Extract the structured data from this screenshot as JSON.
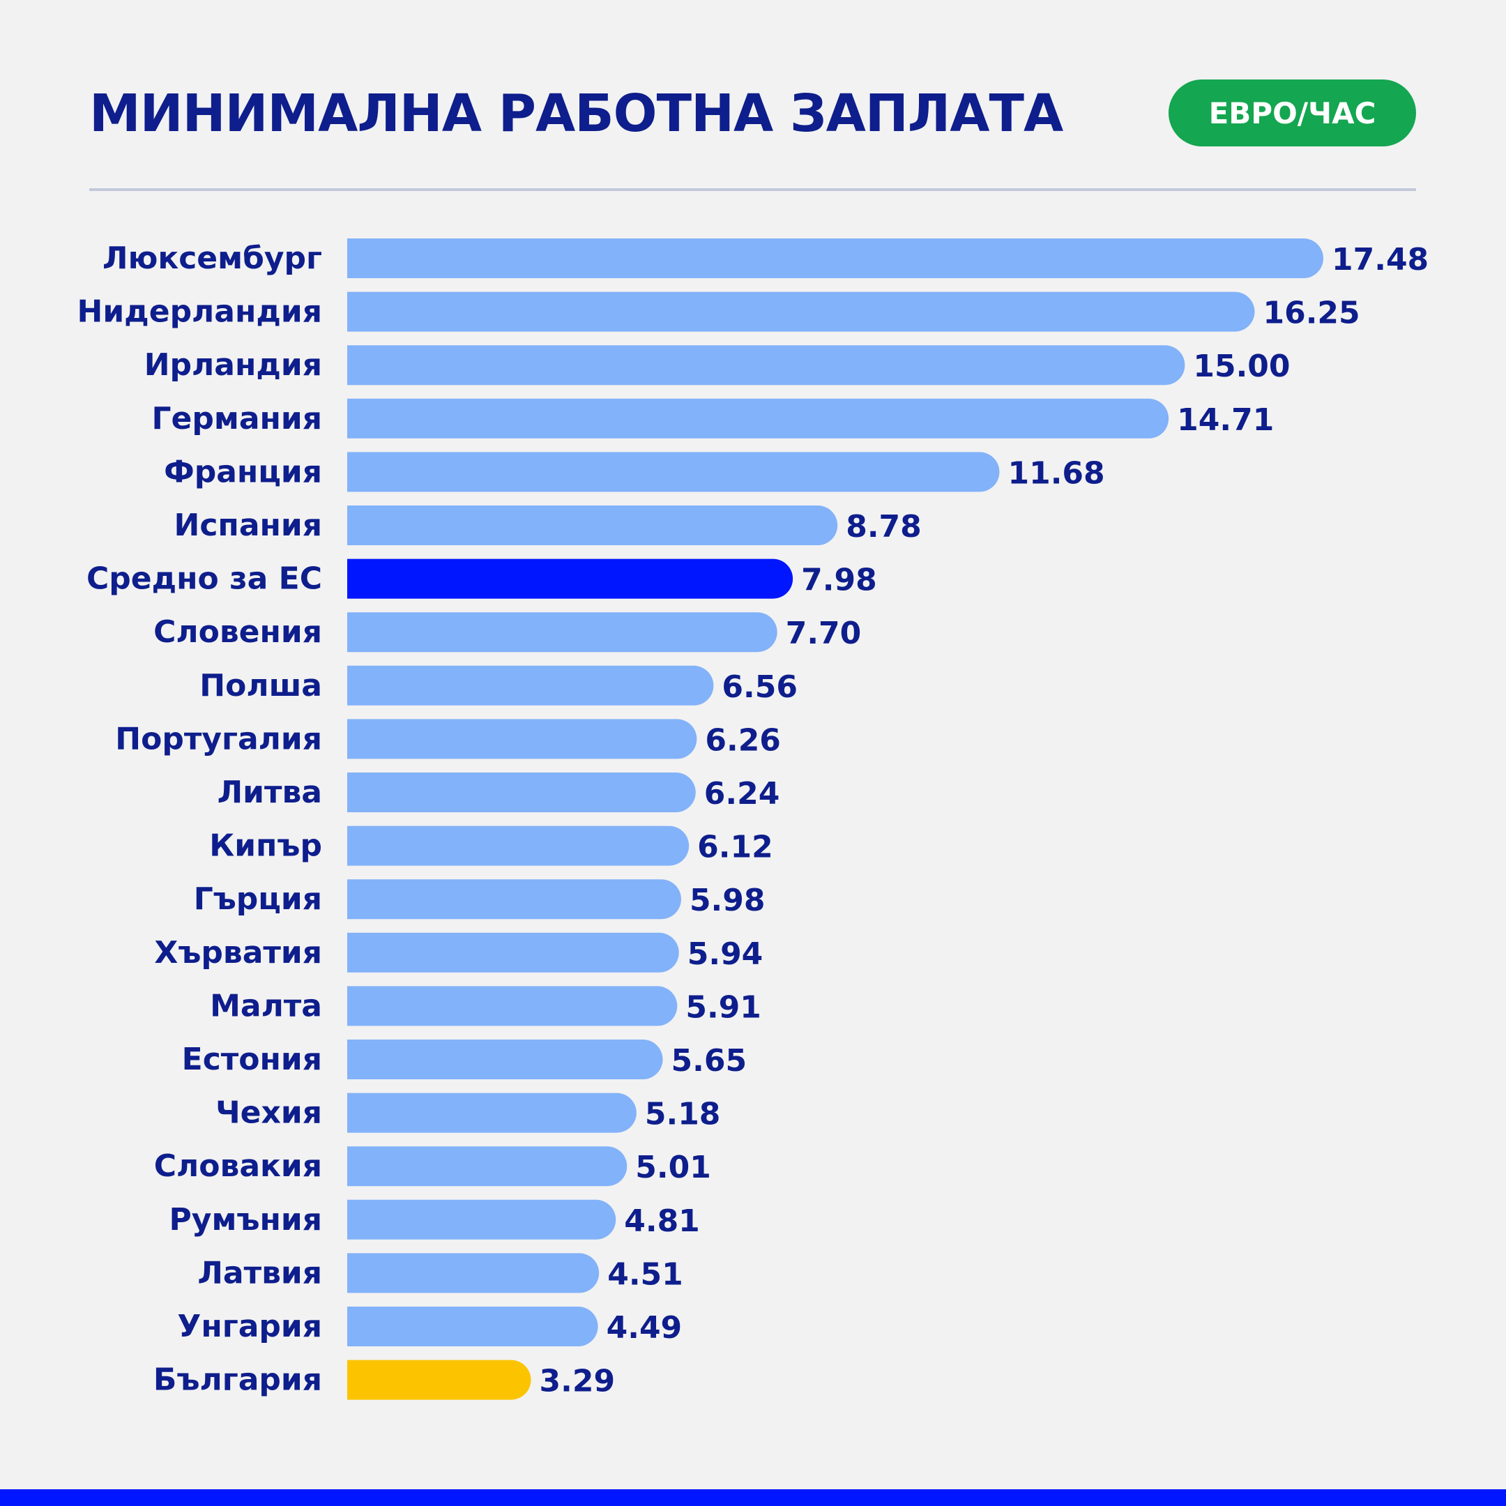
{
  "header": {
    "title": "МИНИМАЛНА РАБОТНА ЗАПЛАТА",
    "unit_badge": "ЕВРО/ЧАС"
  },
  "colors": {
    "background": "#f2f2f2",
    "title": "#0e1e8c",
    "badge": "#14a650",
    "bar_default": "#82b2f9",
    "bar_eu_average": "#0016ff",
    "bar_bulgaria": "#fcc400",
    "labels": "#0e1e8c",
    "bottom_bar": "#0016ff"
  },
  "chart_data": {
    "type": "bar",
    "orientation": "horizontal",
    "title": "МИНИМАЛНА РАБОТНА ЗАПЛАТА",
    "unit": "ЕВРО/ЧАС",
    "categories": [
      "Люксембург",
      "Нидерландия",
      "Ирландия",
      "Германия",
      "Франция",
      "Испания",
      "Средно за ЕС",
      "Словения",
      "Полша",
      "Португалия",
      "Литва",
      "Кипър",
      "Гърция",
      "Хърватия",
      "Малта",
      "Естония",
      "Чехия",
      "Словакия",
      "Румъния",
      "Латвия",
      "Унгария",
      "България"
    ],
    "values": [
      17.48,
      16.25,
      15.0,
      14.71,
      11.68,
      8.78,
      7.98,
      7.7,
      6.56,
      6.26,
      6.24,
      6.12,
      5.98,
      5.94,
      5.91,
      5.65,
      5.18,
      5.01,
      4.81,
      4.51,
      4.49,
      3.29
    ],
    "value_labels": [
      "17.48",
      "16.25",
      "15.00",
      "14.71",
      "11.68",
      "8.78",
      "7.98",
      "7.70",
      "6.56",
      "6.26",
      "6.24",
      "6.12",
      "5.98",
      "5.94",
      "5.91",
      "5.65",
      "5.18",
      "5.01",
      "4.81",
      "4.51",
      "4.49",
      "3.29"
    ],
    "highlights": {
      "Средно за ЕС": "#0016ff",
      "България": "#fcc400"
    },
    "xlim": [
      0,
      17.48
    ],
    "grid": false,
    "legend": "none"
  }
}
